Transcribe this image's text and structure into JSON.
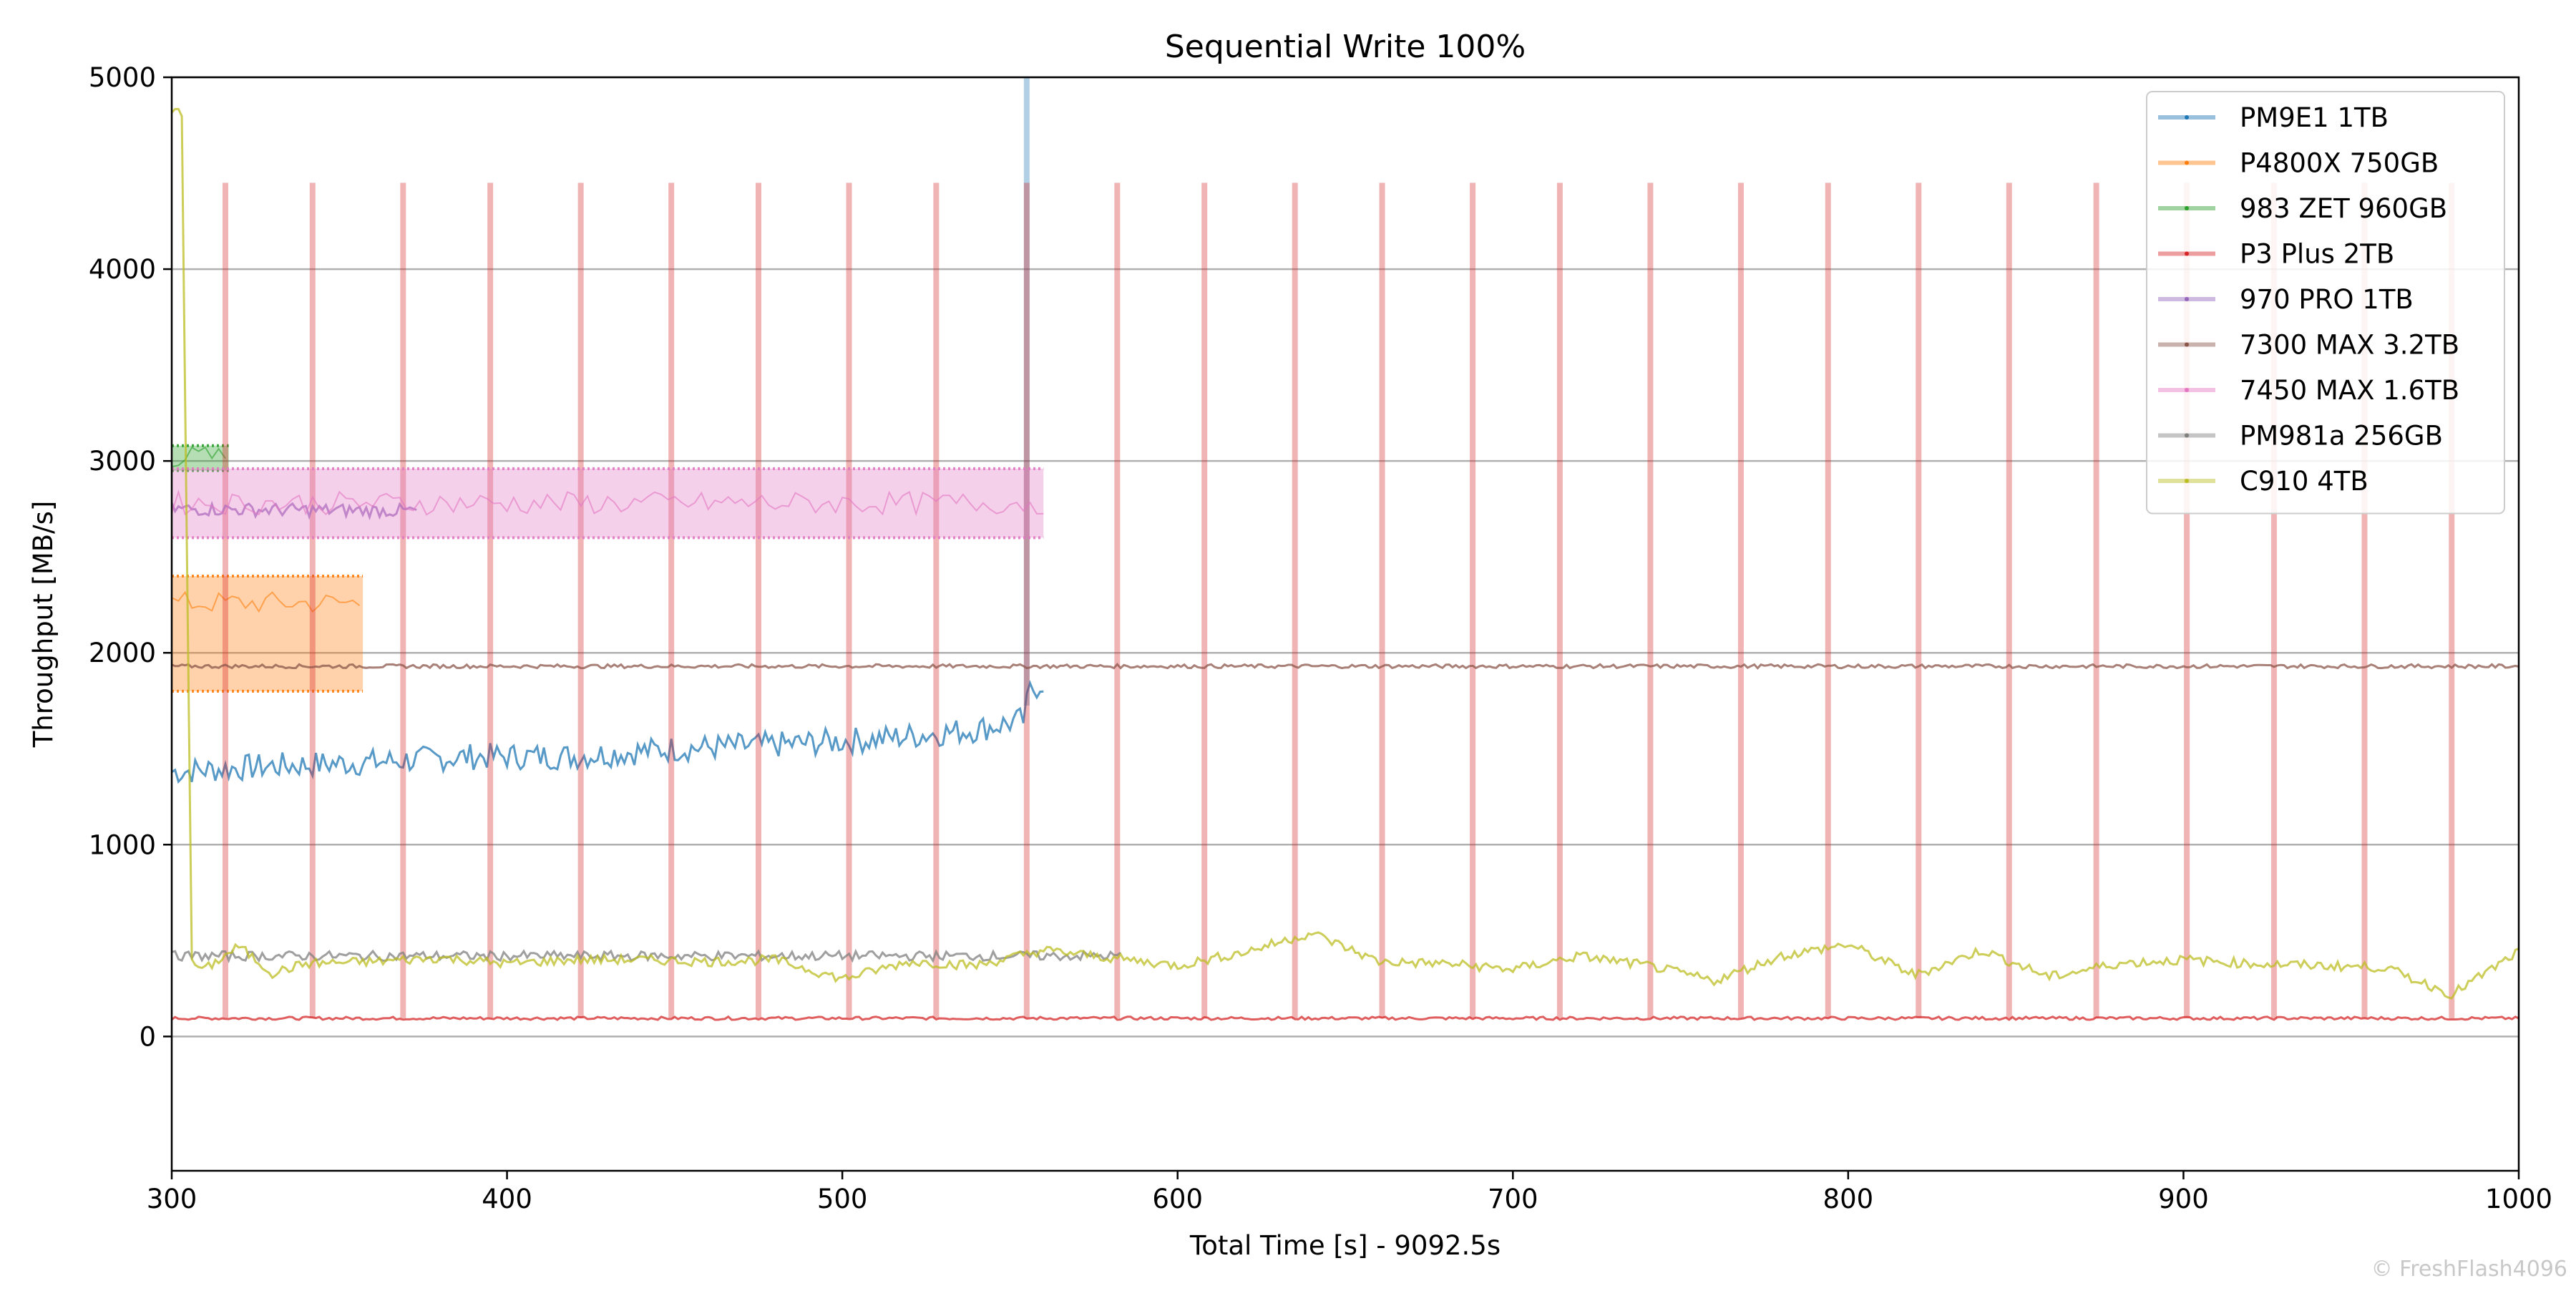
{
  "chart_data": {
    "type": "line",
    "title": "Sequential Write 100%",
    "xlabel": "Total Time [s] - 9092.5s",
    "ylabel": "Throughput [MB/s]",
    "xlim": [
      300,
      1000
    ],
    "ylim": [
      -700,
      5000
    ],
    "xticks": [
      300,
      400,
      500,
      600,
      700,
      800,
      900,
      1000
    ],
    "yticks": [
      0,
      1000,
      2000,
      3000,
      4000,
      5000
    ],
    "grid": "horizontal",
    "legend_position": "top-right",
    "series": [
      {
        "name": "PM9E1 1TB",
        "color": "#1f77b4",
        "x": [
          300,
          330,
          360,
          390,
          420,
          450,
          480,
          510,
          540,
          554,
          556,
          560
        ],
        "y": [
          1380,
          1410,
          1430,
          1460,
          1460,
          1500,
          1520,
          1550,
          1600,
          1650,
          1800,
          1850
        ],
        "spike": {
          "x": 555,
          "y": 5000
        }
      },
      {
        "name": "P4800X 750GB",
        "color": "#ff7f0e",
        "band": true,
        "x": [
          300,
          357
        ],
        "y_low": 1800,
        "y_high": 2400,
        "y": [
          2260,
          2260
        ]
      },
      {
        "name": "983 ZET 960GB",
        "color": "#2ca02c",
        "band": true,
        "x": [
          300,
          317
        ],
        "y_low": 2950,
        "y_high": 3080,
        "y": [
          3020,
          3020
        ]
      },
      {
        "name": "P3 Plus 2TB",
        "color": "#d62728",
        "x": [
          300,
          1000
        ],
        "y": [
          95,
          95
        ],
        "spikes_x": [
          316,
          342,
          369,
          395,
          422,
          449,
          475,
          502,
          528,
          555,
          582,
          608,
          635,
          661,
          688,
          714,
          741,
          768,
          794,
          821,
          848,
          874,
          901,
          927,
          954,
          980
        ],
        "spike_y": 4450
      },
      {
        "name": "970 PRO 1TB",
        "color": "#9467bd",
        "x": [
          300,
          373
        ],
        "y": [
          2750,
          2740
        ]
      },
      {
        "name": "7300 MAX 3.2TB",
        "color": "#8c564b",
        "x": [
          300,
          1000
        ],
        "y": [
          1930,
          1930
        ]
      },
      {
        "name": "7450 MAX 1.6TB",
        "color": "#e377c2",
        "band": true,
        "x": [
          300,
          560
        ],
        "y_low": 2600,
        "y_high": 2960,
        "y": [
          2780,
          2780
        ]
      },
      {
        "name": "PM981a 256GB",
        "color": "#7f7f7f",
        "x": [
          300,
          583
        ],
        "y": [
          420,
          420
        ]
      },
      {
        "name": "C910 4TB",
        "color": "#bcbd22",
        "x": [
          300,
          303,
          306,
          310,
          320,
          330,
          340,
          360,
          380,
          400,
          420,
          440,
          460,
          480,
          500,
          520,
          540,
          560,
          580,
          600,
          620,
          640,
          660,
          680,
          700,
          720,
          740,
          760,
          780,
          800,
          820,
          840,
          860,
          880,
          900,
          920,
          940,
          960,
          980,
          1000
        ],
        "y": [
          4820,
          4820,
          380,
          350,
          470,
          330,
          380,
          390,
          410,
          380,
          400,
          400,
          390,
          400,
          300,
          390,
          370,
          450,
          410,
          370,
          440,
          540,
          390,
          380,
          350,
          420,
          370,
          290,
          420,
          480,
          320,
          450,
          310,
          380,
          400,
          380,
          370,
          360,
          220,
          440
        ]
      }
    ]
  },
  "watermark": "© FreshFlash4096"
}
